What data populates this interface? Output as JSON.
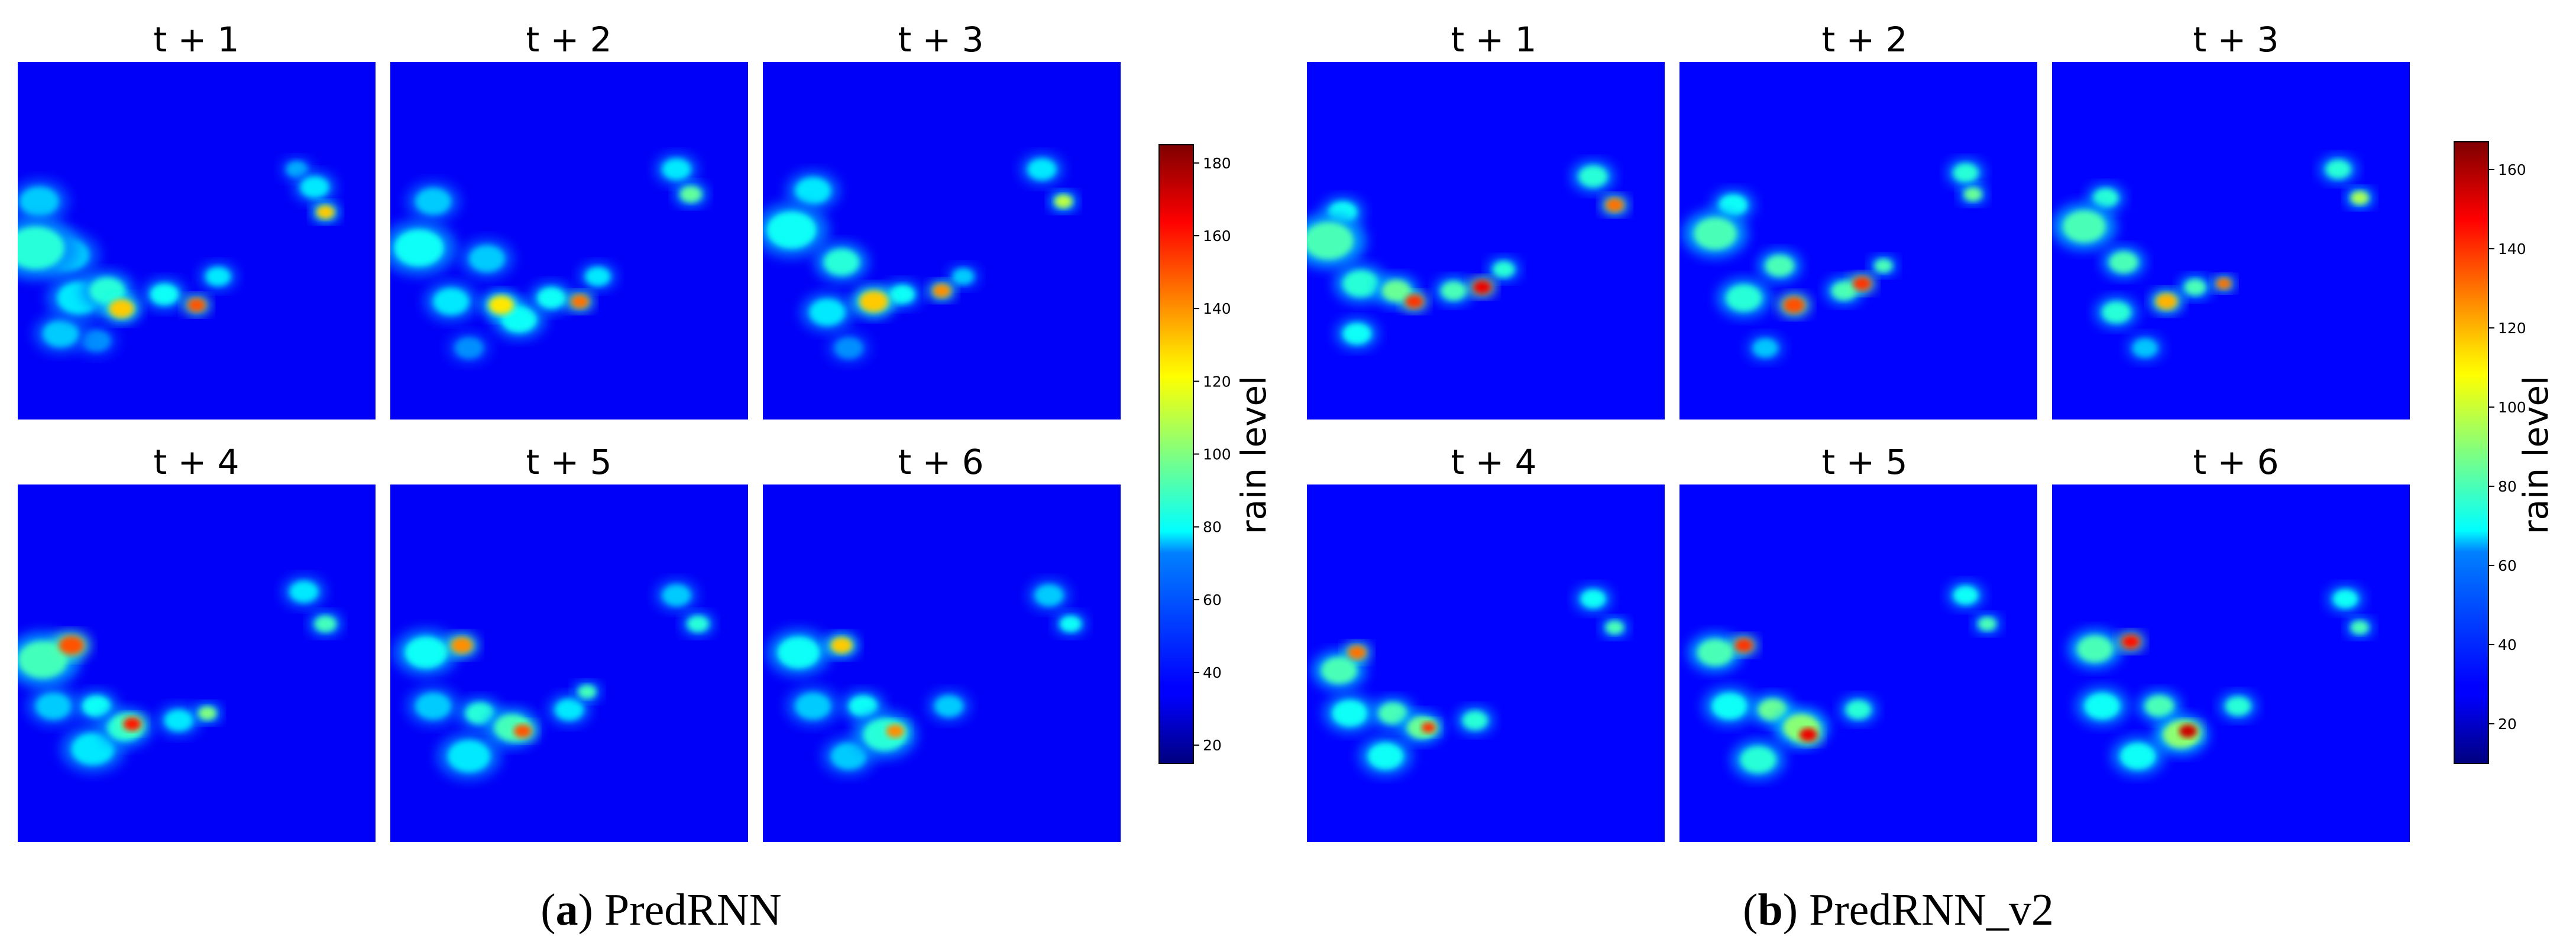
{
  "chart_data": [
    {
      "type": "heatmap",
      "model": "PredRNN",
      "caption": {
        "letter": "a",
        "text": "PredRNN"
      },
      "panel_titles": [
        "t + 1",
        "t + 2",
        "t + 3",
        "t + 4",
        "t + 5",
        "t + 6"
      ],
      "colorbar": {
        "label": "rain level",
        "colormap": "jet",
        "range": [
          15,
          185
        ],
        "ticks": [
          20,
          40,
          60,
          80,
          100,
          120,
          140,
          160,
          180
        ]
      },
      "background_value": 35,
      "cells": [
        [
          {
            "x": 0.05,
            "y": 0.52,
            "r": 0.08,
            "v": 85
          },
          {
            "x": 0.06,
            "y": 0.39,
            "r": 0.055,
            "v": 70
          },
          {
            "x": 0.14,
            "y": 0.54,
            "r": 0.06,
            "v": 70
          },
          {
            "x": 0.17,
            "y": 0.66,
            "r": 0.06,
            "v": 75
          },
          {
            "x": 0.25,
            "y": 0.64,
            "r": 0.05,
            "v": 85
          },
          {
            "x": 0.29,
            "y": 0.69,
            "r": 0.035,
            "v": 130
          },
          {
            "x": 0.41,
            "y": 0.65,
            "r": 0.04,
            "v": 80
          },
          {
            "x": 0.5,
            "y": 0.68,
            "r": 0.025,
            "v": 150
          },
          {
            "x": 0.56,
            "y": 0.6,
            "r": 0.035,
            "v": 75
          },
          {
            "x": 0.83,
            "y": 0.35,
            "r": 0.04,
            "v": 75
          },
          {
            "x": 0.86,
            "y": 0.42,
            "r": 0.025,
            "v": 130
          },
          {
            "x": 0.12,
            "y": 0.76,
            "r": 0.05,
            "v": 70
          },
          {
            "x": 0.22,
            "y": 0.78,
            "r": 0.04,
            "v": 60
          },
          {
            "x": 0.78,
            "y": 0.3,
            "r": 0.03,
            "v": 65
          }
        ],
        [
          {
            "x": 0.08,
            "y": 0.52,
            "r": 0.07,
            "v": 80
          },
          {
            "x": 0.12,
            "y": 0.39,
            "r": 0.05,
            "v": 70
          },
          {
            "x": 0.17,
            "y": 0.67,
            "r": 0.05,
            "v": 75
          },
          {
            "x": 0.27,
            "y": 0.55,
            "r": 0.05,
            "v": 70
          },
          {
            "x": 0.31,
            "y": 0.68,
            "r": 0.035,
            "v": 125
          },
          {
            "x": 0.36,
            "y": 0.72,
            "r": 0.05,
            "v": 80
          },
          {
            "x": 0.45,
            "y": 0.66,
            "r": 0.04,
            "v": 80
          },
          {
            "x": 0.53,
            "y": 0.67,
            "r": 0.025,
            "v": 145
          },
          {
            "x": 0.58,
            "y": 0.6,
            "r": 0.035,
            "v": 75
          },
          {
            "x": 0.8,
            "y": 0.3,
            "r": 0.04,
            "v": 75
          },
          {
            "x": 0.84,
            "y": 0.37,
            "r": 0.03,
            "v": 95
          },
          {
            "x": 0.22,
            "y": 0.8,
            "r": 0.04,
            "v": 60
          }
        ],
        [
          {
            "x": 0.08,
            "y": 0.47,
            "r": 0.07,
            "v": 80
          },
          {
            "x": 0.14,
            "y": 0.36,
            "r": 0.05,
            "v": 75
          },
          {
            "x": 0.22,
            "y": 0.56,
            "r": 0.05,
            "v": 85
          },
          {
            "x": 0.31,
            "y": 0.67,
            "r": 0.04,
            "v": 130
          },
          {
            "x": 0.18,
            "y": 0.7,
            "r": 0.05,
            "v": 75
          },
          {
            "x": 0.39,
            "y": 0.65,
            "r": 0.035,
            "v": 80
          },
          {
            "x": 0.5,
            "y": 0.64,
            "r": 0.025,
            "v": 140
          },
          {
            "x": 0.56,
            "y": 0.6,
            "r": 0.03,
            "v": 70
          },
          {
            "x": 0.78,
            "y": 0.3,
            "r": 0.04,
            "v": 75
          },
          {
            "x": 0.84,
            "y": 0.39,
            "r": 0.025,
            "v": 110
          },
          {
            "x": 0.24,
            "y": 0.8,
            "r": 0.04,
            "v": 60
          }
        ],
        [
          {
            "x": 0.07,
            "y": 0.49,
            "r": 0.07,
            "v": 90
          },
          {
            "x": 0.15,
            "y": 0.45,
            "r": 0.035,
            "v": 150
          },
          {
            "x": 0.1,
            "y": 0.62,
            "r": 0.05,
            "v": 70
          },
          {
            "x": 0.22,
            "y": 0.62,
            "r": 0.04,
            "v": 80
          },
          {
            "x": 0.3,
            "y": 0.68,
            "r": 0.05,
            "v": 85
          },
          {
            "x": 0.32,
            "y": 0.67,
            "r": 0.025,
            "v": 160
          },
          {
            "x": 0.21,
            "y": 0.74,
            "r": 0.06,
            "v": 75
          },
          {
            "x": 0.45,
            "y": 0.66,
            "r": 0.04,
            "v": 75
          },
          {
            "x": 0.53,
            "y": 0.64,
            "r": 0.025,
            "v": 100
          },
          {
            "x": 0.8,
            "y": 0.3,
            "r": 0.04,
            "v": 75
          },
          {
            "x": 0.86,
            "y": 0.39,
            "r": 0.03,
            "v": 90
          }
        ],
        [
          {
            "x": 0.1,
            "y": 0.47,
            "r": 0.06,
            "v": 80
          },
          {
            "x": 0.2,
            "y": 0.45,
            "r": 0.03,
            "v": 140
          },
          {
            "x": 0.12,
            "y": 0.62,
            "r": 0.05,
            "v": 70
          },
          {
            "x": 0.25,
            "y": 0.64,
            "r": 0.04,
            "v": 85
          },
          {
            "x": 0.34,
            "y": 0.68,
            "r": 0.05,
            "v": 90
          },
          {
            "x": 0.37,
            "y": 0.69,
            "r": 0.025,
            "v": 150
          },
          {
            "x": 0.22,
            "y": 0.76,
            "r": 0.06,
            "v": 75
          },
          {
            "x": 0.5,
            "y": 0.63,
            "r": 0.04,
            "v": 75
          },
          {
            "x": 0.55,
            "y": 0.58,
            "r": 0.025,
            "v": 90
          },
          {
            "x": 0.8,
            "y": 0.31,
            "r": 0.04,
            "v": 70
          },
          {
            "x": 0.86,
            "y": 0.39,
            "r": 0.03,
            "v": 85
          }
        ],
        [
          {
            "x": 0.1,
            "y": 0.47,
            "r": 0.06,
            "v": 80
          },
          {
            "x": 0.22,
            "y": 0.45,
            "r": 0.03,
            "v": 130
          },
          {
            "x": 0.14,
            "y": 0.62,
            "r": 0.05,
            "v": 70
          },
          {
            "x": 0.28,
            "y": 0.62,
            "r": 0.04,
            "v": 80
          },
          {
            "x": 0.34,
            "y": 0.7,
            "r": 0.06,
            "v": 85
          },
          {
            "x": 0.37,
            "y": 0.69,
            "r": 0.025,
            "v": 140
          },
          {
            "x": 0.24,
            "y": 0.76,
            "r": 0.05,
            "v": 70
          },
          {
            "x": 0.52,
            "y": 0.62,
            "r": 0.04,
            "v": 70
          },
          {
            "x": 0.8,
            "y": 0.31,
            "r": 0.04,
            "v": 70
          },
          {
            "x": 0.86,
            "y": 0.39,
            "r": 0.03,
            "v": 80
          }
        ]
      ]
    },
    {
      "type": "heatmap",
      "model": "PredRNN_v2",
      "caption": {
        "letter": "b",
        "text": "PredRNN_v2"
      },
      "panel_titles": [
        "t + 1",
        "t + 2",
        "t + 3",
        "t + 4",
        "t + 5",
        "t + 6"
      ],
      "colorbar": {
        "label": "rain level",
        "colormap": "jet",
        "range": [
          10,
          167
        ],
        "ticks": [
          20,
          40,
          60,
          80,
          100,
          120,
          140,
          160
        ]
      },
      "background_value": 30,
      "cells": [
        [
          {
            "x": 0.06,
            "y": 0.5,
            "r": 0.07,
            "v": 80
          },
          {
            "x": 0.1,
            "y": 0.42,
            "r": 0.04,
            "v": 70
          },
          {
            "x": 0.15,
            "y": 0.62,
            "r": 0.05,
            "v": 75
          },
          {
            "x": 0.25,
            "y": 0.64,
            "r": 0.04,
            "v": 85
          },
          {
            "x": 0.3,
            "y": 0.67,
            "r": 0.025,
            "v": 140
          },
          {
            "x": 0.41,
            "y": 0.64,
            "r": 0.035,
            "v": 80
          },
          {
            "x": 0.49,
            "y": 0.63,
            "r": 0.025,
            "v": 150
          },
          {
            "x": 0.55,
            "y": 0.58,
            "r": 0.03,
            "v": 75
          },
          {
            "x": 0.8,
            "y": 0.32,
            "r": 0.04,
            "v": 75
          },
          {
            "x": 0.86,
            "y": 0.4,
            "r": 0.025,
            "v": 130
          },
          {
            "x": 0.14,
            "y": 0.76,
            "r": 0.04,
            "v": 70
          }
        ],
        [
          {
            "x": 0.1,
            "y": 0.48,
            "r": 0.06,
            "v": 80
          },
          {
            "x": 0.15,
            "y": 0.4,
            "r": 0.04,
            "v": 70
          },
          {
            "x": 0.18,
            "y": 0.66,
            "r": 0.05,
            "v": 75
          },
          {
            "x": 0.28,
            "y": 0.57,
            "r": 0.04,
            "v": 80
          },
          {
            "x": 0.32,
            "y": 0.68,
            "r": 0.03,
            "v": 135
          },
          {
            "x": 0.46,
            "y": 0.64,
            "r": 0.035,
            "v": 80
          },
          {
            "x": 0.51,
            "y": 0.62,
            "r": 0.025,
            "v": 140
          },
          {
            "x": 0.57,
            "y": 0.57,
            "r": 0.025,
            "v": 80
          },
          {
            "x": 0.8,
            "y": 0.31,
            "r": 0.035,
            "v": 75
          },
          {
            "x": 0.82,
            "y": 0.37,
            "r": 0.025,
            "v": 85
          },
          {
            "x": 0.24,
            "y": 0.8,
            "r": 0.035,
            "v": 60
          }
        ],
        [
          {
            "x": 0.09,
            "y": 0.46,
            "r": 0.06,
            "v": 80
          },
          {
            "x": 0.15,
            "y": 0.38,
            "r": 0.035,
            "v": 75
          },
          {
            "x": 0.2,
            "y": 0.56,
            "r": 0.04,
            "v": 80
          },
          {
            "x": 0.32,
            "y": 0.67,
            "r": 0.03,
            "v": 120
          },
          {
            "x": 0.18,
            "y": 0.7,
            "r": 0.04,
            "v": 75
          },
          {
            "x": 0.4,
            "y": 0.63,
            "r": 0.03,
            "v": 80
          },
          {
            "x": 0.48,
            "y": 0.62,
            "r": 0.02,
            "v": 130
          },
          {
            "x": 0.8,
            "y": 0.3,
            "r": 0.035,
            "v": 75
          },
          {
            "x": 0.86,
            "y": 0.38,
            "r": 0.025,
            "v": 95
          },
          {
            "x": 0.26,
            "y": 0.8,
            "r": 0.035,
            "v": 60
          }
        ],
        [
          {
            "x": 0.09,
            "y": 0.52,
            "r": 0.05,
            "v": 80
          },
          {
            "x": 0.14,
            "y": 0.47,
            "r": 0.025,
            "v": 130
          },
          {
            "x": 0.12,
            "y": 0.64,
            "r": 0.05,
            "v": 70
          },
          {
            "x": 0.24,
            "y": 0.64,
            "r": 0.04,
            "v": 80
          },
          {
            "x": 0.32,
            "y": 0.68,
            "r": 0.04,
            "v": 85
          },
          {
            "x": 0.34,
            "y": 0.68,
            "r": 0.02,
            "v": 140
          },
          {
            "x": 0.22,
            "y": 0.76,
            "r": 0.05,
            "v": 70
          },
          {
            "x": 0.47,
            "y": 0.66,
            "r": 0.035,
            "v": 75
          },
          {
            "x": 0.8,
            "y": 0.32,
            "r": 0.035,
            "v": 70
          },
          {
            "x": 0.86,
            "y": 0.4,
            "r": 0.025,
            "v": 80
          }
        ],
        [
          {
            "x": 0.1,
            "y": 0.47,
            "r": 0.05,
            "v": 80
          },
          {
            "x": 0.18,
            "y": 0.45,
            "r": 0.025,
            "v": 140
          },
          {
            "x": 0.14,
            "y": 0.62,
            "r": 0.05,
            "v": 70
          },
          {
            "x": 0.26,
            "y": 0.63,
            "r": 0.04,
            "v": 85
          },
          {
            "x": 0.34,
            "y": 0.68,
            "r": 0.05,
            "v": 90
          },
          {
            "x": 0.36,
            "y": 0.7,
            "r": 0.025,
            "v": 150
          },
          {
            "x": 0.22,
            "y": 0.77,
            "r": 0.05,
            "v": 75
          },
          {
            "x": 0.5,
            "y": 0.63,
            "r": 0.035,
            "v": 75
          },
          {
            "x": 0.8,
            "y": 0.31,
            "r": 0.035,
            "v": 70
          },
          {
            "x": 0.86,
            "y": 0.39,
            "r": 0.025,
            "v": 80
          }
        ],
        [
          {
            "x": 0.12,
            "y": 0.46,
            "r": 0.05,
            "v": 80
          },
          {
            "x": 0.22,
            "y": 0.44,
            "r": 0.025,
            "v": 145
          },
          {
            "x": 0.14,
            "y": 0.62,
            "r": 0.05,
            "v": 70
          },
          {
            "x": 0.3,
            "y": 0.62,
            "r": 0.04,
            "v": 80
          },
          {
            "x": 0.36,
            "y": 0.7,
            "r": 0.05,
            "v": 90
          },
          {
            "x": 0.38,
            "y": 0.69,
            "r": 0.025,
            "v": 155
          },
          {
            "x": 0.24,
            "y": 0.76,
            "r": 0.05,
            "v": 70
          },
          {
            "x": 0.52,
            "y": 0.62,
            "r": 0.035,
            "v": 75
          },
          {
            "x": 0.82,
            "y": 0.32,
            "r": 0.035,
            "v": 70
          },
          {
            "x": 0.86,
            "y": 0.4,
            "r": 0.025,
            "v": 80
          }
        ]
      ]
    }
  ]
}
